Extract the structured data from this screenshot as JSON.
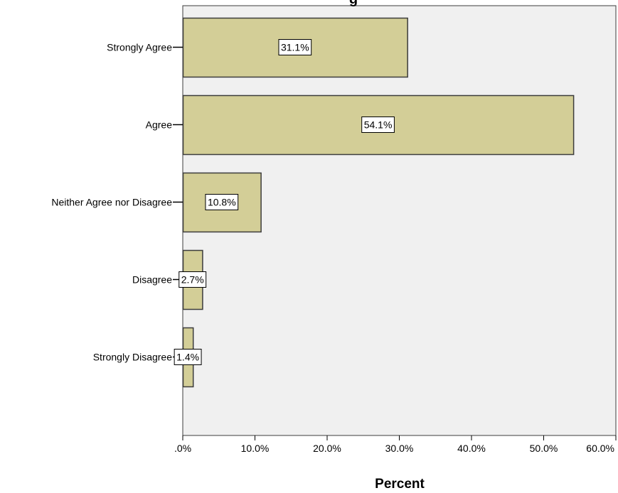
{
  "chart_data": {
    "type": "bar",
    "orientation": "horizontal",
    "title": "g",
    "xlabel": "Percent",
    "ylabel": "",
    "categories": [
      "Strongly Agree",
      "Agree",
      "Neither Agree nor Disagree",
      "Disagree",
      "Strongly Disagree"
    ],
    "values": [
      31.1,
      54.1,
      10.8,
      2.7,
      1.4
    ],
    "data_labels": [
      "31.1%",
      "54.1%",
      "10.8%",
      "2.7%",
      "1.4%"
    ],
    "xlim": [
      0,
      60
    ],
    "x_ticks": [
      0,
      10,
      20,
      30,
      40,
      50,
      60
    ],
    "x_tick_labels": [
      ".0%",
      "10.0%",
      "20.0%",
      "30.0%",
      "40.0%",
      "50.0%",
      "60.0%"
    ],
    "grid": false,
    "legend": "none",
    "colors": {
      "bar_fill": "#d3ce97",
      "bar_stroke": "#3c3c3c",
      "plot_background": "#f0f0f0",
      "label_box_fill": "#ffffff"
    }
  }
}
